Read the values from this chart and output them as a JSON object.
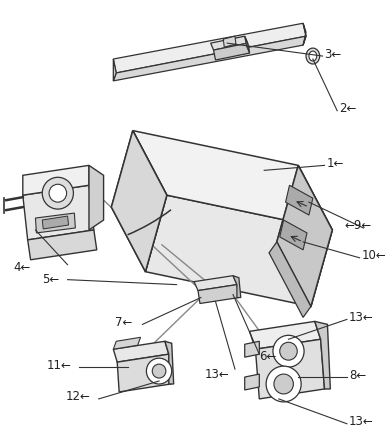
{
  "bg_color": "#ffffff",
  "lc": "#555555",
  "dk": "#333333",
  "figsize": [
    3.92,
    4.48
  ],
  "dpi": 100,
  "label_fs": 8.5,
  "label_color": "#222222"
}
